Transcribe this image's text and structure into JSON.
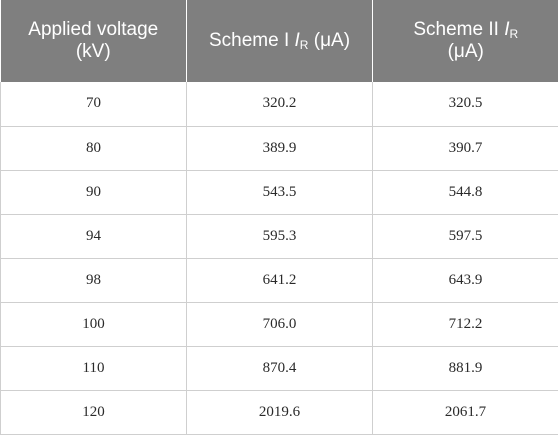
{
  "table": {
    "headers": {
      "col1_line1": "Applied voltage",
      "col1_line2": "(kV)",
      "col2_prefix": "Scheme I ",
      "col2_symbol": "I",
      "col2_subscript": "R",
      "col2_unit": " (μA)",
      "col3_prefix": "Scheme II ",
      "col3_symbol": "I",
      "col3_subscript": "R",
      "col3_unit": "(μA)"
    },
    "rows": [
      {
        "voltage": "70",
        "scheme1": "320.2",
        "scheme2": "320.5"
      },
      {
        "voltage": "80",
        "scheme1": "389.9",
        "scheme2": "390.7"
      },
      {
        "voltage": "90",
        "scheme1": "543.5",
        "scheme2": "544.8"
      },
      {
        "voltage": "94",
        "scheme1": "595.3",
        "scheme2": "597.5"
      },
      {
        "voltage": "98",
        "scheme1": "641.2",
        "scheme2": "643.9"
      },
      {
        "voltage": "100",
        "scheme1": "706.0",
        "scheme2": "712.2"
      },
      {
        "voltage": "110",
        "scheme1": "870.4",
        "scheme2": "881.9"
      },
      {
        "voltage": "120",
        "scheme1": "2019.6",
        "scheme2": "2061.7"
      }
    ]
  }
}
